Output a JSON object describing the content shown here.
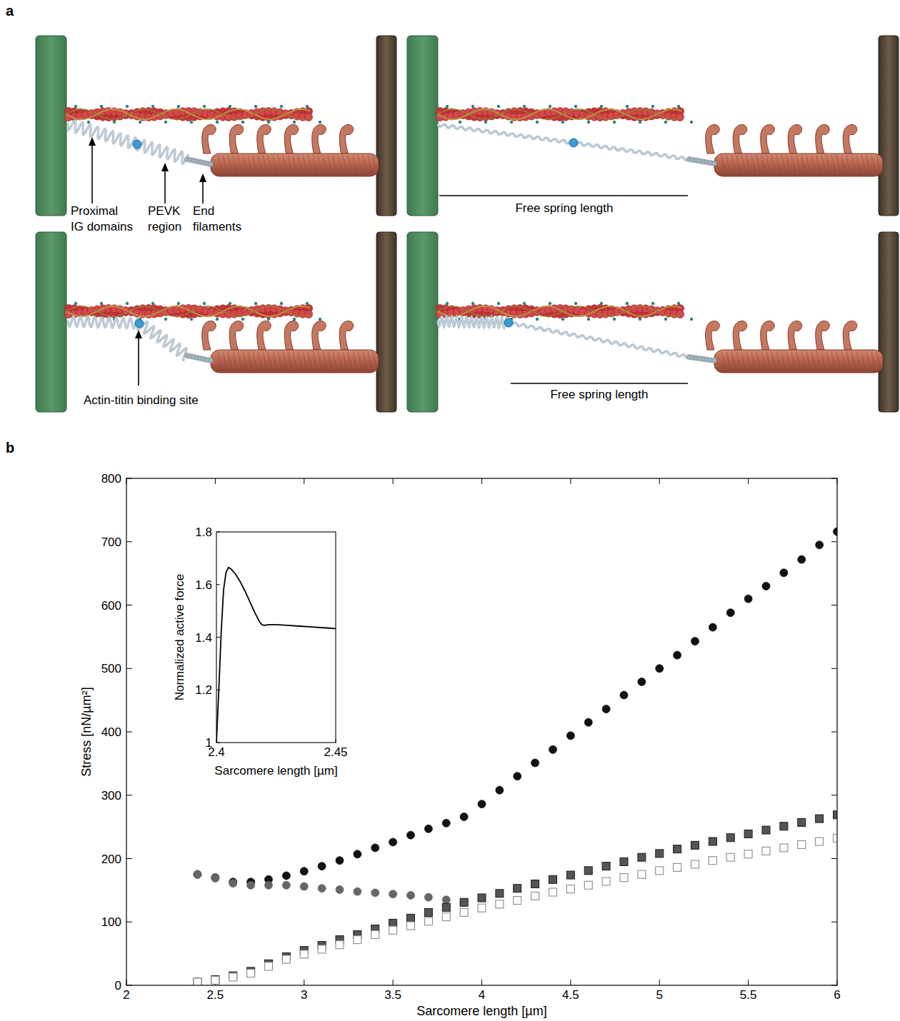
{
  "panel_labels": [
    "a",
    "b"
  ],
  "diagram": {
    "proximal_label": [
      "Proximal",
      "IG domains"
    ],
    "pevk_label": [
      "PEVK",
      "region"
    ],
    "end_label": [
      "End",
      "filaments"
    ],
    "binding_label": "Actin-titin binding site",
    "free_spring_top": "Free spring length",
    "free_spring_bottom": "Free spring length"
  },
  "chart_data": [
    {
      "type": "scatter",
      "x_label": "Sarcomere length [µm]",
      "y_label": "Stress [nN/µm²]",
      "x": [
        2.4,
        2.5,
        2.6,
        2.7,
        2.8,
        2.9,
        3.0,
        3.1,
        3.2,
        3.3,
        3.4,
        3.5,
        3.6,
        3.7,
        3.8,
        3.9,
        4.0,
        4.1,
        4.2,
        4.3,
        4.4,
        4.5,
        4.6,
        4.7,
        4.8,
        4.9,
        5.0,
        5.1,
        5.2,
        5.3,
        5.4,
        5.5,
        5.6,
        5.7,
        5.8,
        5.9,
        6.0
      ],
      "xlim": [
        2,
        6
      ],
      "xticks": [
        2,
        2.5,
        3,
        3.5,
        4,
        4.5,
        5,
        5.5,
        6
      ],
      "ylim": [
        0,
        800
      ],
      "yticks": [
        0,
        100,
        200,
        300,
        400,
        500,
        600,
        700,
        800
      ],
      "grid": false,
      "series": [
        {
          "color": "#111111",
          "marker": "circle",
          "values": [
            175,
            170,
            163,
            163,
            167,
            173,
            180,
            188,
            197,
            207,
            217,
            226,
            237,
            247,
            256,
            266,
            286,
            308,
            330,
            351,
            372,
            394,
            415,
            436,
            458,
            479,
            500,
            521,
            543,
            565,
            588,
            610,
            630,
            651,
            672,
            695,
            716
          ]
        },
        {
          "color": "#666666",
          "marker": "circle",
          "values": [
            175,
            169,
            161,
            158,
            158,
            158,
            156,
            153,
            151,
            148,
            146,
            144,
            142,
            139,
            135,
            131,
            null,
            null,
            null,
            null,
            null,
            null,
            null,
            null,
            null,
            null,
            null,
            null,
            null,
            null,
            null,
            null,
            null,
            null,
            null,
            null,
            null
          ]
        },
        {
          "color": "#555555",
          "marker": "square",
          "values": [
            5,
            9,
            15,
            22,
            34,
            45,
            55,
            63,
            72,
            80,
            89,
            98,
            106,
            115,
            123,
            131,
            138,
            145,
            153,
            160,
            167,
            174,
            181,
            188,
            195,
            202,
            208,
            215,
            221,
            227,
            233,
            239,
            245,
            251,
            257,
            263,
            269
          ]
        },
        {
          "color": "#8a8a8a",
          "marker": "open_square",
          "values": [
            5,
            8,
            13,
            19,
            30,
            41,
            49,
            57,
            64,
            72,
            80,
            87,
            94,
            101,
            108,
            115,
            122,
            128,
            134,
            141,
            147,
            152,
            158,
            164,
            170,
            175,
            181,
            186,
            191,
            197,
            202,
            207,
            212,
            217,
            222,
            227,
            232
          ]
        }
      ]
    },
    {
      "type": "line",
      "x_label": "Sarcomere length [µm]",
      "y_label": "Normalized active force",
      "x": [
        2.4,
        2.401,
        2.402,
        2.403,
        2.404,
        2.405,
        2.406,
        2.408,
        2.41,
        2.412,
        2.414,
        2.416,
        2.418,
        2.419,
        2.42,
        2.422,
        2.425,
        2.43,
        2.435,
        2.44,
        2.445,
        2.45
      ],
      "values": [
        1.0,
        1.2,
        1.42,
        1.58,
        1.645,
        1.665,
        1.66,
        1.64,
        1.61,
        1.575,
        1.535,
        1.495,
        1.46,
        1.448,
        1.445,
        1.448,
        1.448,
        1.445,
        1.442,
        1.439,
        1.436,
        1.433
      ],
      "xlim": [
        2.4,
        2.45
      ],
      "xticks": [
        2.4,
        2.45
      ],
      "ylim": [
        1,
        1.8
      ],
      "yticks": [
        1,
        1.2,
        1.4,
        1.6,
        1.8
      ],
      "color": "#000000",
      "grid": false
    }
  ]
}
